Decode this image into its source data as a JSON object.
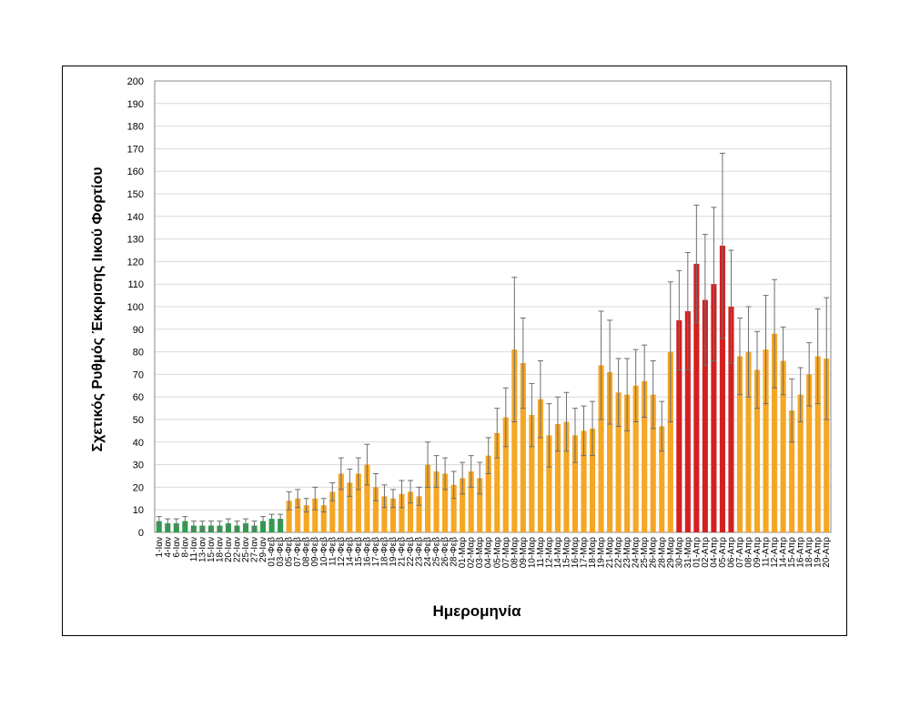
{
  "chart_data": {
    "type": "bar",
    "y_label": "Σχετικός Ρυθμός Έκκρισης Ιικού Φορτίου",
    "x_label": "Ημερομηνία",
    "categories": [
      "1-Ιαν",
      "4-Ιαν",
      "6-Ιαν",
      "8-Ιαν",
      "11-Ιαν",
      "13-Ιαν",
      "15-Ιαν",
      "18-Ιαν",
      "20-Ιαν",
      "22-Ιαν",
      "25-Ιαν",
      "27-Ιαν",
      "29-Ιαν",
      "01-Φεβ",
      "03-Φεβ",
      "05-Φεβ",
      "07-Φεβ",
      "08-Φεβ",
      "09-Φεβ",
      "10-Φεβ",
      "11-Φεβ",
      "12-Φεβ",
      "14-Φεβ",
      "15-Φεβ",
      "16-Φεβ",
      "17-Φεβ",
      "18-Φεβ",
      "19-Φεβ",
      "21-Φεβ",
      "22-Φεβ",
      "23-Φεβ",
      "24-Φεβ",
      "25-Φεβ",
      "26-Φεβ",
      "28-Φεβ",
      "01-Μαρ",
      "02-Μαρ",
      "03-Μαρ",
      "04-Μαρ",
      "05-Μαρ",
      "07-Μαρ",
      "08-Μαρ",
      "09-Μαρ",
      "10-Μαρ",
      "11-Μαρ",
      "12-Μαρ",
      "14-Μαρ",
      "15-Μαρ",
      "16-Μαρ",
      "17-Μαρ",
      "18-Μαρ",
      "19-Μαρ",
      "21-Μαρ",
      "22-Μαρ",
      "23-Μαρ",
      "24-Μαρ",
      "25-Μαρ",
      "26-Μαρ",
      "28-Μαρ",
      "29-Μαρ",
      "30-Μαρ",
      "31-Μαρ",
      "01-Απρ",
      "02-Απρ",
      "04-Απρ",
      "05-Απρ",
      "06-Απρ",
      "07-Απρ",
      "08-Απρ",
      "09-Απρ",
      "11-Απρ",
      "12-Απρ",
      "14-Απρ",
      "15-Απρ",
      "16-Απρ",
      "18-Απρ",
      "19-Απρ",
      "20-Απρ"
    ],
    "values": [
      5,
      4,
      4,
      5,
      3,
      3,
      3,
      3,
      4,
      3,
      4,
      3,
      5,
      6,
      6,
      14,
      15,
      12,
      15,
      12,
      18,
      26,
      22,
      26,
      30,
      20,
      16,
      15,
      17,
      18,
      16,
      30,
      27,
      26,
      21,
      24,
      27,
      24,
      34,
      44,
      51,
      81,
      75,
      52,
      59,
      43,
      48,
      49,
      43,
      45,
      46,
      74,
      71,
      62,
      61,
      65,
      67,
      61,
      47,
      80,
      94,
      98,
      119,
      103,
      110,
      127,
      100,
      78,
      80,
      72,
      81,
      88,
      76,
      54,
      61,
      70,
      78,
      77
    ],
    "errors": [
      2,
      2,
      2,
      2,
      2,
      2,
      2,
      2,
      2,
      2,
      2,
      2,
      2,
      2,
      2,
      4,
      4,
      3,
      5,
      3,
      4,
      7,
      6,
      7,
      9,
      6,
      5,
      4,
      6,
      5,
      4,
      10,
      7,
      7,
      6,
      7,
      7,
      7,
      8,
      11,
      13,
      32,
      20,
      14,
      17,
      14,
      12,
      13,
      12,
      11,
      12,
      24,
      23,
      15,
      16,
      16,
      16,
      15,
      11,
      31,
      22,
      26,
      26,
      29,
      34,
      41,
      25,
      17,
      20,
      17,
      24,
      24,
      15,
      14,
      12,
      14,
      21,
      27
    ],
    "colors": [
      "#2e9e4f",
      "#2e9e4f",
      "#2e9e4f",
      "#2e9e4f",
      "#2e9e4f",
      "#2e9e4f",
      "#2e9e4f",
      "#2e9e4f",
      "#2e9e4f",
      "#2e9e4f",
      "#2e9e4f",
      "#2e9e4f",
      "#2e9e4f",
      "#2e9e4f",
      "#2e9e4f",
      "#f5a623",
      "#f5a623",
      "#f5a623",
      "#f5a623",
      "#f5a623",
      "#f5a623",
      "#f5a623",
      "#f5a623",
      "#f5a623",
      "#f5a623",
      "#f5a623",
      "#f5a623",
      "#f5a623",
      "#f5a623",
      "#f5a623",
      "#f5a623",
      "#f5a623",
      "#f5a623",
      "#f5a623",
      "#f5a623",
      "#f5a623",
      "#f5a623",
      "#f5a623",
      "#f5a623",
      "#f5a623",
      "#f5a623",
      "#f5a623",
      "#f5a623",
      "#f5a623",
      "#f5a623",
      "#f5a623",
      "#f5a623",
      "#f5a623",
      "#f5a623",
      "#f5a623",
      "#f5a623",
      "#f5a623",
      "#f5a623",
      "#f5a623",
      "#f5a623",
      "#f5a623",
      "#f5a623",
      "#f5a623",
      "#f5a623",
      "#f5a623",
      "#d42020",
      "#d42020",
      "#d42020",
      "#d42020",
      "#d42020",
      "#d42020",
      "#d42020",
      "#f5a623",
      "#f5a623",
      "#f5a623",
      "#f5a623",
      "#f5a623",
      "#f5a623",
      "#f5a623",
      "#f5a623",
      "#f5a623",
      "#f5a623",
      "#f5a623"
    ],
    "error_color": "#6e6e6e",
    "ylim": [
      0,
      200
    ],
    "yticks": [
      0,
      10,
      20,
      30,
      40,
      50,
      60,
      70,
      80,
      90,
      100,
      110,
      120,
      130,
      140,
      150,
      160,
      170,
      180,
      190,
      200
    ],
    "grid": true
  }
}
